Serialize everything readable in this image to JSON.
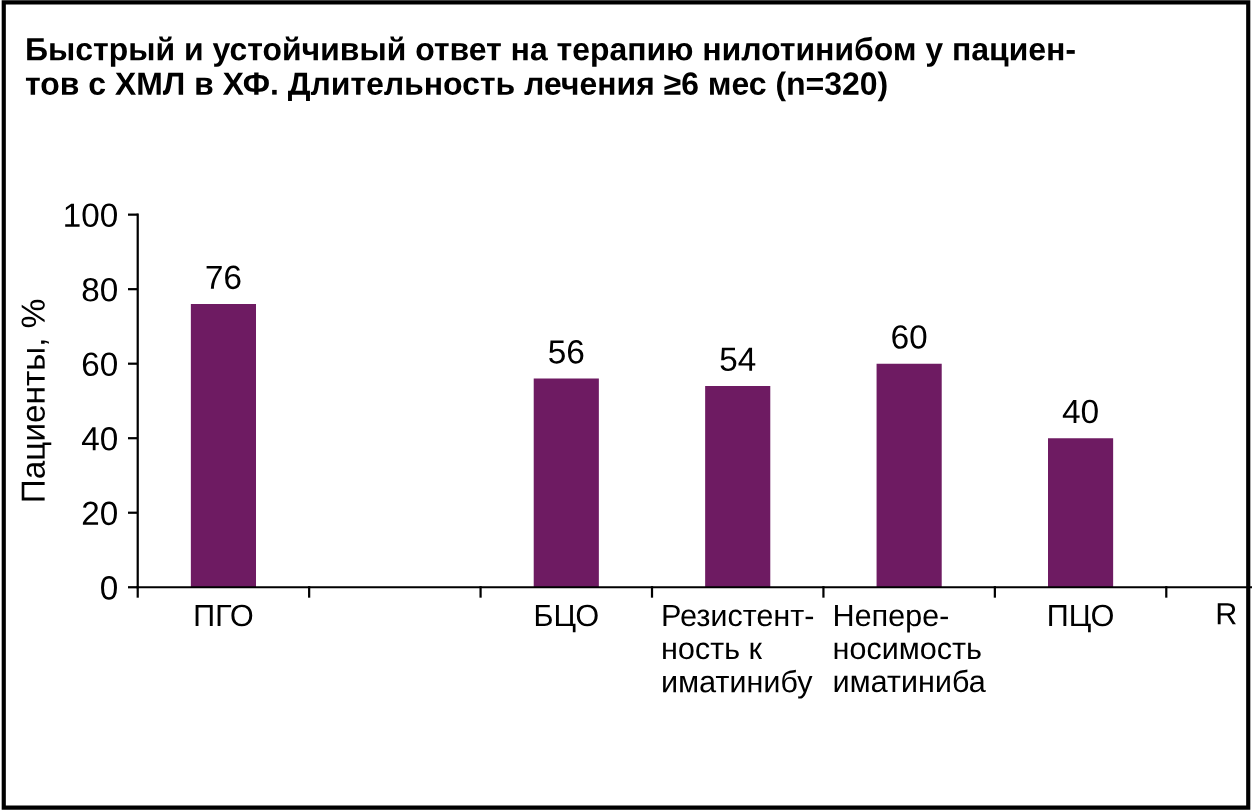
{
  "chart_data": {
    "type": "bar",
    "title": "Быстрый и устойчивый ответ на терапию нилотинибом у пациен-\nтов с ХМЛ в ХФ. Длительность лечения ≥6 мес (n=320)",
    "ylabel": "Пациенты, %",
    "categories": [
      "ПГО",
      null,
      "БЦО",
      "Резистент-\nность к\nиматинибу",
      "Непере-\nносимость\nиматиниба",
      "ПЦО"
    ],
    "values": [
      76,
      null,
      56,
      54,
      60,
      40
    ],
    "color": "#6e1b62",
    "ylim": [
      0,
      100
    ],
    "yticks": [
      0,
      20,
      40,
      60,
      80,
      100
    ],
    "data_labels": true,
    "annotations": [
      "R"
    ]
  }
}
